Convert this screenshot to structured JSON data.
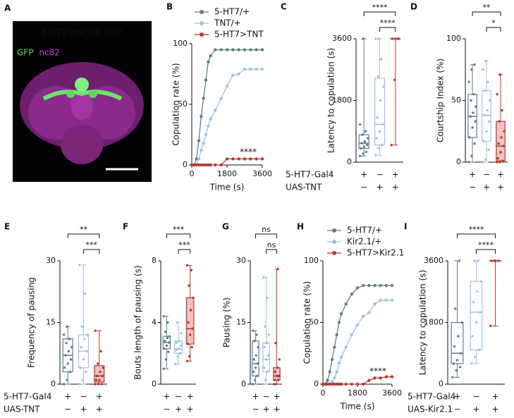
{
  "chart_data": [
    {
      "type": "image",
      "panel": "A",
      "title": "5-HT7>mCD8::GFP",
      "labels": [
        "GFP",
        "nc82"
      ],
      "colors": [
        "#55e055",
        "#d03ad0"
      ]
    },
    {
      "type": "line",
      "panel": "B",
      "xlabel": "Time (s)",
      "ylabel": "Copulation rate (%)",
      "x": [
        0,
        120,
        240,
        360,
        480,
        600,
        720,
        840,
        960,
        1200,
        1500,
        1800,
        2100,
        2400,
        2700,
        3000,
        3300,
        3600
      ],
      "xlim": [
        0,
        3600
      ],
      "xticks": [
        0,
        1800,
        3600
      ],
      "ylim": [
        0,
        100
      ],
      "yticks": [
        0,
        50,
        100
      ],
      "annotation": "****",
      "series": [
        {
          "name": "5-HT7/+",
          "color": "#5e7f8c",
          "values": [
            0,
            0,
            5,
            20,
            40,
            55,
            70,
            85,
            90,
            95,
            95,
            95,
            95,
            95,
            95,
            95,
            95,
            95
          ]
        },
        {
          "name": "TNT/+",
          "color": "#9cc3e2",
          "values": [
            0,
            0,
            0,
            5,
            12,
            18,
            25,
            32,
            38,
            45,
            55,
            65,
            74,
            75,
            79,
            79,
            79,
            79
          ]
        },
        {
          "name": "5-HT7>TNT",
          "color": "#b13b31",
          "values": [
            0,
            0,
            0,
            0,
            0,
            0,
            0,
            0,
            0,
            0,
            0,
            5,
            5,
            5,
            5,
            5,
            5,
            5
          ]
        }
      ]
    },
    {
      "type": "box",
      "panel": "C",
      "ylabel": "Latency to copulation (s)",
      "ylim": [
        0,
        3600
      ],
      "yticks": [
        0,
        1800,
        3600
      ],
      "significance": [
        "****",
        "****"
      ],
      "conditions": [
        {
          "name": "5-HT7-Gal4",
          "values": [
            "+",
            "−",
            "+"
          ]
        },
        {
          "name": "UAS-TNT",
          "values": [
            "−",
            "+",
            "+"
          ]
        }
      ],
      "groups": [
        {
          "color": "#5e7f8c",
          "fill": "#ffffff",
          "min": 180,
          "q1": 400,
          "median": 550,
          "q3": 800,
          "max": 3600,
          "points": [
            180,
            250,
            300,
            400,
            450,
            500,
            550,
            600,
            700,
            800,
            900,
            1100,
            3600
          ]
        },
        {
          "color": "#9cc3e2",
          "fill": "#ffffff",
          "min": 200,
          "q1": 500,
          "median": 1100,
          "q3": 2450,
          "max": 3600,
          "points": [
            200,
            400,
            500,
            700,
            900,
            1100,
            1300,
            1800,
            2200,
            2500,
            3000,
            3600,
            3600
          ]
        },
        {
          "color": "#b13b31",
          "fill": "#efc2bd",
          "min": 500,
          "q1": 3600,
          "median": 3600,
          "q3": 3600,
          "max": 3600,
          "points": [
            500,
            2400,
            3600,
            3600,
            3600,
            3600
          ]
        }
      ]
    },
    {
      "type": "box",
      "panel": "D",
      "ylabel": "Courtship Index (%)",
      "ylim": [
        0,
        100
      ],
      "yticks": [
        0,
        50,
        100
      ],
      "significance": [
        "**",
        "*"
      ],
      "conditions": [
        {
          "values": [
            "+",
            "−",
            "+"
          ]
        },
        {
          "values": [
            "−",
            "+",
            "+"
          ]
        }
      ],
      "groups": [
        {
          "color": "#5e7f8c",
          "fill": "#ffffff",
          "min": 0,
          "q1": 20,
          "median": 37,
          "q3": 55,
          "max": 79,
          "points": [
            0,
            5,
            15,
            20,
            28,
            33,
            37,
            40,
            45,
            50,
            55,
            65,
            75,
            79
          ]
        },
        {
          "color": "#9cc3e2",
          "fill": "#ffffff",
          "min": 0,
          "q1": 17,
          "median": 38,
          "q3": 58,
          "max": 82,
          "points": [
            0,
            2,
            10,
            17,
            25,
            33,
            38,
            42,
            50,
            58,
            65,
            75,
            82
          ]
        },
        {
          "color": "#b13b31",
          "fill": "#efc2bd",
          "min": 0,
          "q1": 1,
          "median": 13,
          "q3": 33,
          "max": 71,
          "points": [
            0,
            0,
            1,
            3,
            8,
            13,
            15,
            20,
            25,
            33,
            42,
            55,
            71
          ]
        }
      ]
    },
    {
      "type": "box",
      "panel": "E",
      "ylabel": "Frequency of pausing",
      "ylim": [
        0,
        30
      ],
      "yticks": [
        0,
        15,
        30
      ],
      "significance": [
        "**",
        "***"
      ],
      "conditions": [
        {
          "name": "5-HT7-Gal4",
          "values": [
            "+",
            "−",
            "+"
          ]
        },
        {
          "name": "UAS-TNT",
          "values": [
            "−",
            "+",
            "+"
          ]
        }
      ],
      "groups": [
        {
          "color": "#5e7f8c",
          "fill": "#ffffff",
          "min": 0,
          "q1": 3,
          "median": 7,
          "q3": 11,
          "max": 14,
          "points": [
            0,
            1,
            3,
            4,
            5,
            6,
            7,
            8,
            9,
            10,
            11,
            12,
            14
          ]
        },
        {
          "color": "#9cc3e2",
          "fill": "#ffffff",
          "min": 0,
          "q1": 4,
          "median": 8,
          "q3": 12,
          "max": 29,
          "points": [
            0,
            1,
            3,
            4,
            6,
            8,
            9,
            11,
            12,
            14,
            22,
            29
          ]
        },
        {
          "color": "#b13b31",
          "fill": "#efc2bd",
          "min": 0,
          "q1": 0.5,
          "median": 2,
          "q3": 4.5,
          "max": 13,
          "points": [
            0,
            0,
            0,
            1,
            1,
            2,
            2,
            3,
            4,
            5,
            8,
            13
          ]
        }
      ]
    },
    {
      "type": "box",
      "panel": "F",
      "ylabel": "Bouts length of pausing (s)",
      "ylim": [
        0,
        8
      ],
      "yticks": [
        0,
        4,
        8
      ],
      "significance": [
        "***",
        "***"
      ],
      "conditions": [
        {
          "values": [
            "+",
            "−",
            "+"
          ]
        },
        {
          "values": [
            "−",
            "+",
            "+"
          ]
        }
      ],
      "groups": [
        {
          "color": "#5e7f8c",
          "fill": "#ffffff",
          "min": 1,
          "q1": 2.3,
          "median": 2.7,
          "q3": 3.1,
          "max": 4.4,
          "points": [
            1,
            1.6,
            2.1,
            2.3,
            2.5,
            2.7,
            2.8,
            3,
            3.1,
            3.4,
            4,
            4.4
          ]
        },
        {
          "color": "#9cc3e2",
          "fill": "#ffffff",
          "min": 1.3,
          "q1": 2,
          "median": 2.3,
          "q3": 2.8,
          "max": 4,
          "points": [
            1.3,
            1.8,
            2,
            2.2,
            2.3,
            2.5,
            2.7,
            2.8,
            3.3,
            4
          ]
        },
        {
          "color": "#b13b31",
          "fill": "#efc2bd",
          "min": 1.5,
          "q1": 2.6,
          "median": 3.6,
          "q3": 5.6,
          "max": 7.7,
          "points": [
            1.5,
            1.8,
            2.4,
            2.6,
            3.2,
            3.6,
            4,
            4.8,
            5.6,
            6.4,
            7.4,
            7.7
          ]
        }
      ]
    },
    {
      "type": "box",
      "panel": "G",
      "ylabel": "Pausing (%)",
      "ylim": [
        0,
        30
      ],
      "yticks": [
        0,
        15,
        30
      ],
      "significance": [
        "ns",
        "ns"
      ],
      "conditions": [
        {
          "values": [
            "+",
            "−",
            "+"
          ]
        },
        {
          "values": [
            "−",
            "+",
            "+"
          ]
        }
      ],
      "groups": [
        {
          "color": "#5e7f8c",
          "fill": "#ffffff",
          "min": 0,
          "q1": 2,
          "median": 5,
          "q3": 10.5,
          "max": 13,
          "points": [
            0,
            1,
            2,
            3,
            4,
            5,
            6,
            7,
            9,
            10.5,
            12,
            13
          ]
        },
        {
          "color": "#9cc3e2",
          "fill": "#ffffff",
          "min": 0,
          "q1": 3,
          "median": 6,
          "q3": 10,
          "max": 26,
          "points": [
            0,
            1,
            3,
            4,
            6,
            7,
            9,
            10,
            12,
            14,
            21,
            26
          ]
        },
        {
          "color": "#b13b31",
          "fill": "#efc2bd",
          "min": 0,
          "q1": 1,
          "median": 2,
          "q3": 4,
          "max": 28,
          "points": [
            0,
            0,
            1,
            1,
            2,
            2,
            3,
            4,
            6,
            10,
            28
          ]
        }
      ]
    },
    {
      "type": "line",
      "panel": "H",
      "xlabel": "Time (s)",
      "ylabel": "Copulation rate (%)",
      "x": [
        0,
        120,
        240,
        360,
        480,
        600,
        720,
        840,
        960,
        1200,
        1500,
        1800,
        2100,
        2400,
        2700,
        3000,
        3300,
        3600
      ],
      "xlim": [
        0,
        3600
      ],
      "xticks": [
        0,
        1800,
        3600
      ],
      "ylim": [
        0,
        100
      ],
      "yticks": [
        0,
        50,
        100
      ],
      "annotation": "****",
      "series": [
        {
          "name": "5-HT7/+",
          "color": "#5e7f8c",
          "values": [
            0,
            0,
            3,
            10,
            20,
            30,
            40,
            50,
            57,
            65,
            73,
            78,
            80,
            80,
            80,
            80,
            80,
            80
          ]
        },
        {
          "name": "Kir2.1/+",
          "color": "#9cc3e2",
          "values": [
            0,
            0,
            0,
            0,
            2,
            5,
            10,
            17,
            22,
            30,
            40,
            48,
            55,
            58,
            65,
            68,
            68,
            68
          ]
        },
        {
          "name": "5-HT7>Kir2.1",
          "color": "#b13b31",
          "values": [
            0,
            0,
            0,
            0,
            0,
            0,
            0,
            0,
            0,
            0,
            0,
            0,
            0,
            3,
            5,
            5,
            6,
            6
          ]
        }
      ]
    },
    {
      "type": "box",
      "panel": "I",
      "ylabel": "Latency to copulation (s)",
      "ylim": [
        0,
        3600
      ],
      "yticks": [
        0,
        1800,
        3600
      ],
      "significance": [
        "****",
        "****"
      ],
      "conditions": [
        {
          "name": "5-HT7-Gal4",
          "values": [
            "+",
            "−",
            "+"
          ]
        },
        {
          "name": "UAS-Kir2.1",
          "values": [
            "−",
            "+",
            "+"
          ]
        }
      ],
      "groups": [
        {
          "color": "#5e7f8c",
          "fill": "#ffffff",
          "min": 200,
          "q1": 600,
          "median": 900,
          "q3": 1800,
          "max": 3600,
          "points": [
            200,
            400,
            500,
            600,
            700,
            900,
            1100,
            1400,
            1800,
            2200,
            3600
          ]
        },
        {
          "color": "#9cc3e2",
          "fill": "#ffffff",
          "min": 600,
          "q1": 1000,
          "median": 2100,
          "q3": 3000,
          "max": 3600,
          "points": [
            600,
            800,
            1000,
            1400,
            1800,
            2100,
            2400,
            2700,
            3000,
            3600,
            3600
          ]
        },
        {
          "color": "#b13b31",
          "fill": "#efc2bd",
          "min": 1700,
          "q1": 3600,
          "median": 3600,
          "q3": 3600,
          "max": 3600,
          "points": [
            1700,
            3600,
            3600,
            3600,
            3600
          ]
        }
      ]
    }
  ]
}
